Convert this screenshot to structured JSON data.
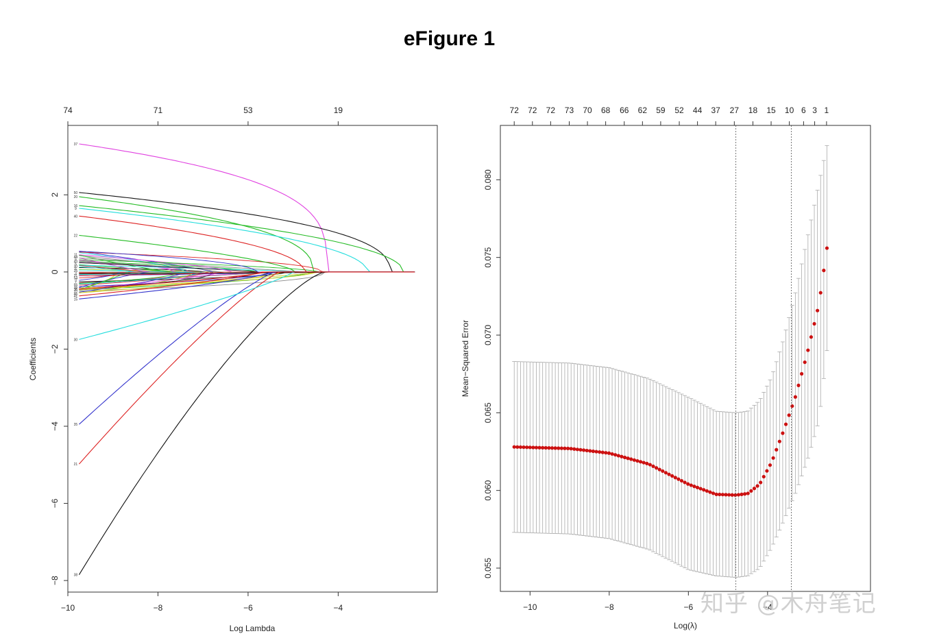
{
  "figure": {
    "title": "eFigure 1",
    "watermark": "知乎 @木舟笔记"
  },
  "chart_data": [
    {
      "type": "line",
      "panel": "left",
      "xlabel": "Log Lambda",
      "ylabel": "Coefficients",
      "xlim": [
        -10,
        -1.8
      ],
      "ylim": [
        -8.3,
        3.8
      ],
      "x_ticks": [
        -10,
        -8,
        -6,
        -4
      ],
      "y_ticks": [
        -8,
        -6,
        -4,
        -2,
        0,
        2
      ],
      "top_axis_ticks": [
        {
          "x": -10,
          "label": "74"
        },
        {
          "x": -8,
          "label": "71"
        },
        {
          "x": -6,
          "label": "53"
        },
        {
          "x": -4,
          "label": "19"
        }
      ],
      "x_start": -9.75,
      "x_end": -2.3,
      "major_paths": [
        {
          "label": "37",
          "color": "#e040e0",
          "start": 3.32,
          "zero_at": -4.25,
          "shape": 3.5
        },
        {
          "label": "50",
          "color": "#111111",
          "start": 2.06,
          "zero_at": -2.85,
          "shape": 2.5
        },
        {
          "label": "20",
          "color": "#22bb22",
          "start": 1.95,
          "zero_at": -4.55,
          "shape": 2.5
        },
        {
          "label": "16",
          "color": "#22bb22",
          "start": 1.72,
          "zero_at": -2.55,
          "shape": 2.0
        },
        {
          "label": "9",
          "color": "#22dddd",
          "start": 1.65,
          "zero_at": -3.35,
          "shape": 2.0
        },
        {
          "label": "40",
          "color": "#dd2222",
          "start": 1.45,
          "zero_at": -4.75,
          "shape": 2.0
        },
        {
          "label": "22",
          "color": "#22bb22",
          "start": 0.95,
          "zero_at": -4.95,
          "shape": 1.5
        },
        {
          "label": "35",
          "color": "#3333cc",
          "start": -3.95,
          "zero_at": -5.4,
          "shape": 0.85
        },
        {
          "label": "21",
          "color": "#dd2222",
          "start": -4.98,
          "zero_at": -5.3,
          "shape": 0.85
        },
        {
          "label": "30",
          "color": "#22dddd",
          "start": -1.75,
          "zero_at": -5.0,
          "shape": 1.2
        },
        {
          "label": "38",
          "color": "#111111",
          "start": -7.85,
          "zero_at": -4.3,
          "shape": 0.75
        },
        {
          "label": "15",
          "color": "#3333cc",
          "start": -0.7,
          "zero_at": -5.5,
          "shape": 1.4
        },
        {
          "label": "2",
          "color": "#dd2222",
          "start": -0.45,
          "zero_at": -5.6,
          "shape": 1.3
        },
        {
          "label": "41",
          "color": "#dd2222",
          "start": -0.62,
          "zero_at": -5.7,
          "shape": 1.3
        }
      ],
      "minor_paths": {
        "count": 60,
        "colors": [
          "#111111",
          "#dd2222",
          "#22bb22",
          "#3333cc",
          "#22dddd",
          "#e040e0",
          "#cccc22",
          "#888888"
        ],
        "labels": [
          "11",
          "44",
          "8",
          "43",
          "5",
          "30",
          "6",
          "25",
          "3",
          "31",
          "54",
          "3",
          "7",
          "56",
          "26",
          "36",
          "32",
          "46"
        ]
      }
    },
    {
      "type": "scatter",
      "panel": "right",
      "xlabel": "Log(λ)",
      "ylabel": "Mean−Squared Error",
      "xlim": [
        -10.75,
        -1.4
      ],
      "ylim": [
        0.0535,
        0.0835
      ],
      "x_ticks": [
        -10,
        -8,
        -6,
        -4
      ],
      "y_ticks": [
        0.055,
        0.06,
        0.065,
        0.07,
        0.075,
        0.08
      ],
      "y_tick_labels": [
        "0.055",
        "0.060",
        "0.065",
        "0.070",
        "0.075",
        "0.080"
      ],
      "top_axis_ticks": [
        {
          "x": -10.4,
          "label": "72"
        },
        {
          "x": -9.94,
          "label": "72"
        },
        {
          "x": -9.48,
          "label": "72"
        },
        {
          "x": -9.01,
          "label": "73"
        },
        {
          "x": -8.55,
          "label": "70"
        },
        {
          "x": -8.09,
          "label": "68"
        },
        {
          "x": -7.62,
          "label": "66"
        },
        {
          "x": -7.16,
          "label": "62"
        },
        {
          "x": -6.7,
          "label": "59"
        },
        {
          "x": -6.23,
          "label": "52"
        },
        {
          "x": -5.77,
          "label": "44"
        },
        {
          "x": -5.31,
          "label": "37"
        },
        {
          "x": -4.84,
          "label": "27"
        },
        {
          "x": -4.37,
          "label": "18"
        },
        {
          "x": -3.91,
          "label": "15"
        },
        {
          "x": -3.45,
          "label": "10"
        },
        {
          "x": -3.09,
          "label": "6"
        },
        {
          "x": -2.81,
          "label": "3"
        },
        {
          "x": -2.51,
          "label": "1"
        }
      ],
      "lambda_min_log": -4.8,
      "lambda_1se_log": -3.4,
      "cv_curve": {
        "x": [
          -10.4,
          -9.0,
          -8.0,
          -7.0,
          -6.0,
          -5.3,
          -4.8,
          -4.5,
          -4.2,
          -3.9,
          -3.6,
          -3.3,
          -3.0,
          -2.7,
          -2.5
        ],
        "mse": [
          0.0628,
          0.0627,
          0.0624,
          0.0617,
          0.0604,
          0.05975,
          0.0597,
          0.0598,
          0.0604,
          0.0618,
          0.0638,
          0.066,
          0.0688,
          0.072,
          0.0756
        ],
        "upper": [
          0.0683,
          0.0682,
          0.0679,
          0.0672,
          0.066,
          0.0651,
          0.065,
          0.0651,
          0.0658,
          0.0673,
          0.0697,
          0.0727,
          0.0762,
          0.0798,
          0.0822
        ],
        "lower": [
          0.0573,
          0.0572,
          0.0569,
          0.0562,
          0.0549,
          0.0545,
          0.0544,
          0.0545,
          0.055,
          0.0563,
          0.058,
          0.0598,
          0.0619,
          0.0645,
          0.069
        ],
        "n_points": 100
      },
      "point_color": "#cc1111",
      "errorbar_color": "#aaaaaa"
    }
  ]
}
